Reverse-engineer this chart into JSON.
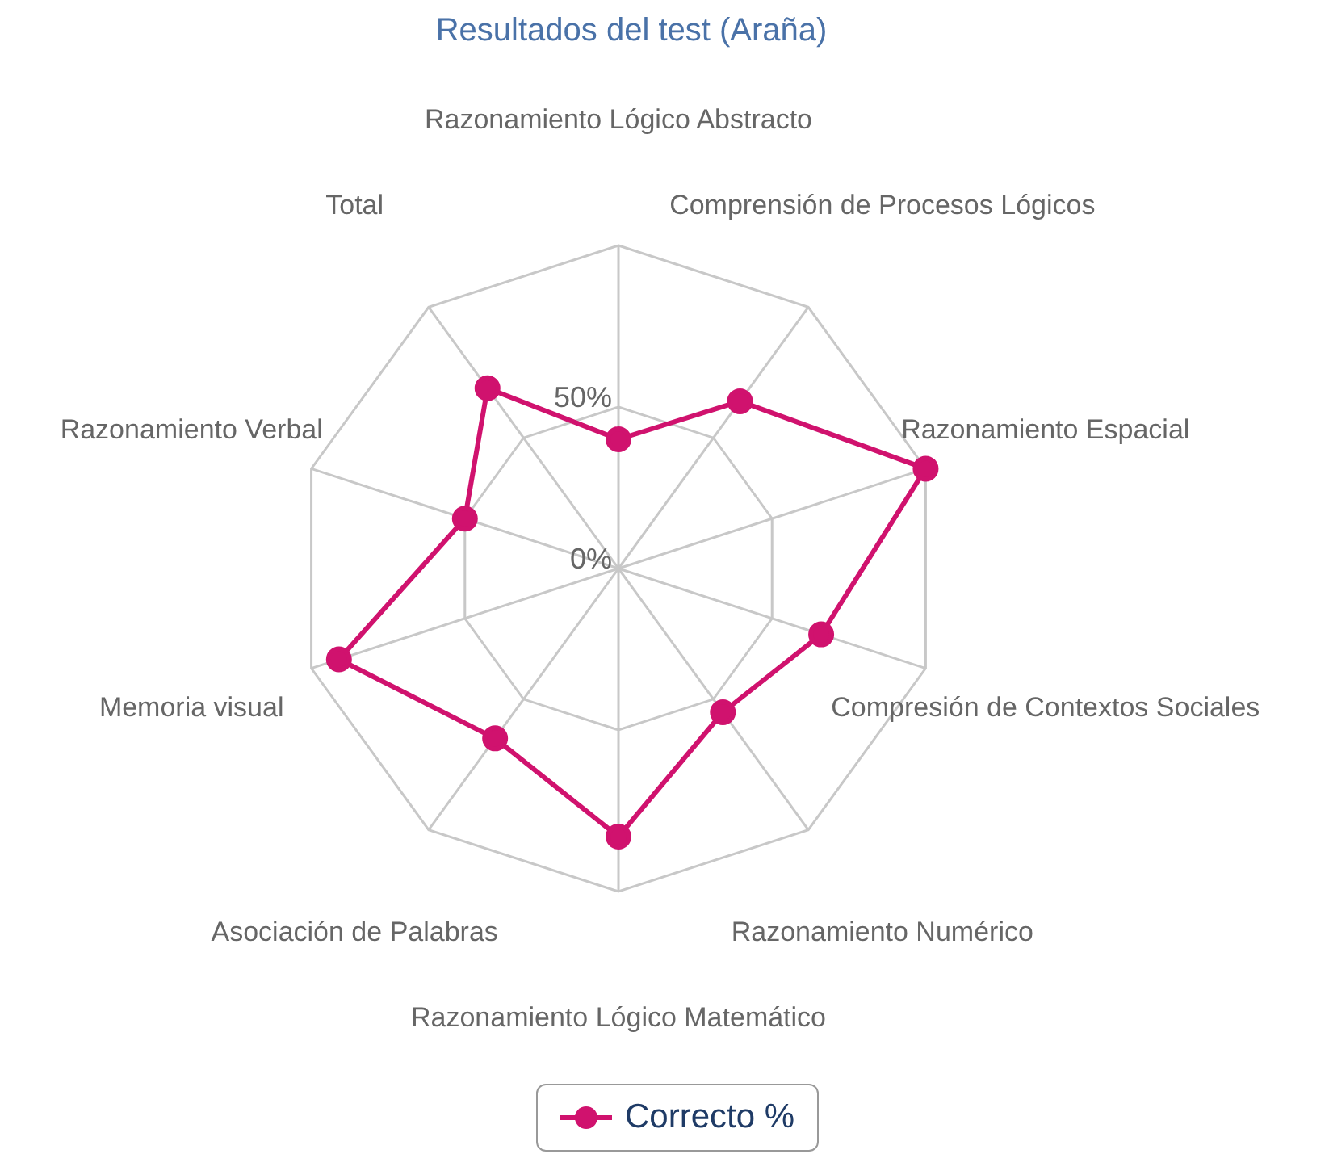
{
  "chart_data": {
    "type": "radar",
    "title": "Resultados del test (Araña)",
    "categories": [
      "Razonamiento Lógico Abstracto",
      "Comprensión de Procesos Lógicos",
      "Razonamiento Espacial",
      "Compresión de Contextos Sociales",
      "Razonamiento Numérico",
      "Razonamiento Lógico Matemático",
      "Asociación de Palabras",
      "Memoria visual",
      "Razonamiento Verbal",
      "Total"
    ],
    "series": [
      {
        "name": "Correcto %",
        "color": "#d0126e",
        "values": [
          40,
          64,
          100,
          66,
          55,
          83,
          65,
          91,
          50,
          69
        ]
      }
    ],
    "ylim": [
      0,
      100
    ],
    "yticks": [
      {
        "value": 0,
        "label": "0%"
      },
      {
        "value": 50,
        "label": "50%"
      }
    ],
    "grid": true,
    "legend": "bottom",
    "marker": "circle",
    "line_style": "solid"
  }
}
